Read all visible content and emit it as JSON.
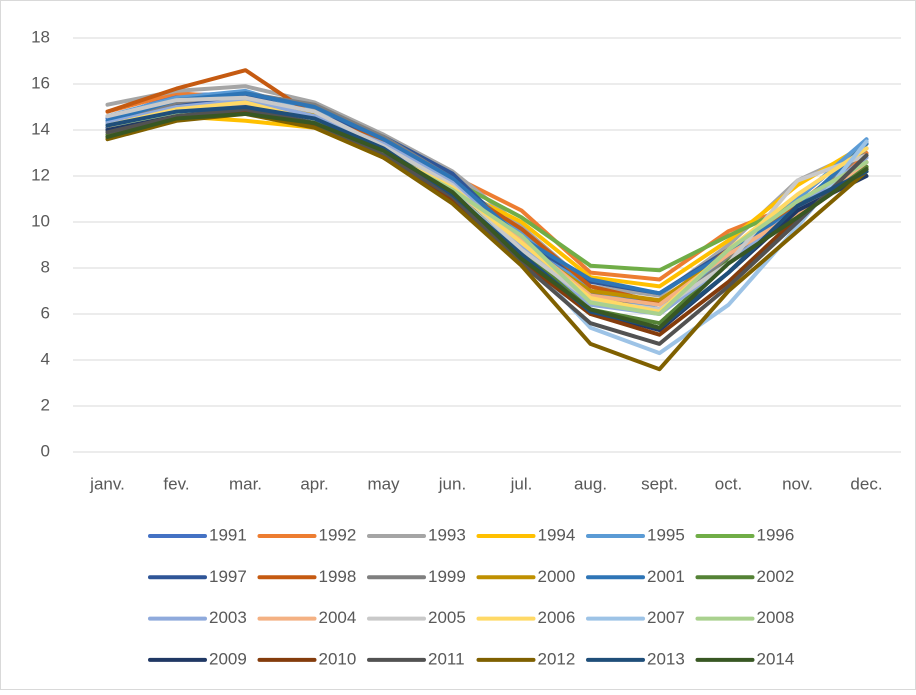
{
  "chart_data": {
    "type": "line",
    "categories": [
      "janv.",
      "fev.",
      "mar.",
      "apr.",
      "may",
      "jun.",
      "jul.",
      "aug.",
      "sept.",
      "oct.",
      "nov.",
      "dec."
    ],
    "ylim": [
      0,
      18
    ],
    "yticks": [
      0,
      2,
      4,
      6,
      8,
      10,
      12,
      14,
      16,
      18
    ],
    "grid": true,
    "legend": "bottom",
    "series": [
      {
        "name": "1991",
        "color": "#4472C4",
        "values": [
          14.5,
          15.5,
          15.6,
          15.0,
          13.6,
          11.8,
          9.2,
          7.0,
          6.5,
          8.6,
          11.0,
          13.5
        ]
      },
      {
        "name": "1992",
        "color": "#ED7D31",
        "values": [
          14.8,
          15.6,
          15.4,
          14.9,
          13.4,
          12.0,
          10.5,
          7.8,
          7.5,
          9.6,
          10.8,
          13.0
        ]
      },
      {
        "name": "1993",
        "color": "#A5A5A5",
        "values": [
          15.1,
          15.7,
          15.9,
          15.2,
          13.8,
          12.2,
          9.8,
          7.2,
          6.8,
          9.0,
          11.8,
          13.2
        ]
      },
      {
        "name": "1994",
        "color": "#FFC000",
        "values": [
          14.2,
          14.6,
          14.4,
          14.1,
          12.8,
          11.5,
          10.0,
          7.6,
          7.2,
          9.2,
          11.6,
          13.4
        ]
      },
      {
        "name": "1995",
        "color": "#5B9BD5",
        "values": [
          14.6,
          15.4,
          15.7,
          14.8,
          13.5,
          11.9,
          9.5,
          7.0,
          6.2,
          8.4,
          11.0,
          13.6
        ]
      },
      {
        "name": "1996",
        "color": "#70AD47",
        "values": [
          14.0,
          15.0,
          15.3,
          14.5,
          13.2,
          11.8,
          10.2,
          8.1,
          7.9,
          9.4,
          10.8,
          12.6
        ]
      },
      {
        "name": "1997",
        "color": "#2F5597",
        "values": [
          14.1,
          15.1,
          15.5,
          14.7,
          13.7,
          12.1,
          9.2,
          7.4,
          6.9,
          8.8,
          10.7,
          12.4
        ]
      },
      {
        "name": "1998",
        "color": "#C55A11",
        "values": [
          14.8,
          15.8,
          16.6,
          14.6,
          13.5,
          11.6,
          9.7,
          7.2,
          6.5,
          8.8,
          10.8,
          12.6
        ]
      },
      {
        "name": "1999",
        "color": "#7F7F7F",
        "values": [
          14.3,
          15.2,
          15.6,
          15.1,
          13.7,
          11.9,
          9.0,
          6.9,
          6.0,
          8.4,
          10.4,
          13.2
        ]
      },
      {
        "name": "2000",
        "color": "#BF9000",
        "values": [
          14.0,
          15.0,
          15.2,
          14.7,
          13.2,
          11.2,
          9.0,
          7.0,
          6.6,
          8.6,
          10.6,
          12.4
        ]
      },
      {
        "name": "2001",
        "color": "#2E75B6",
        "values": [
          14.4,
          15.3,
          15.6,
          15.0,
          13.6,
          11.9,
          9.3,
          7.5,
          6.9,
          8.7,
          10.6,
          13.4
        ]
      },
      {
        "name": "2002",
        "color": "#548235",
        "values": [
          13.8,
          14.8,
          15.0,
          14.6,
          13.2,
          11.6,
          8.8,
          6.2,
          5.6,
          8.3,
          10.3,
          12.4
        ]
      },
      {
        "name": "2003",
        "color": "#8FAADC",
        "values": [
          14.3,
          15.0,
          15.3,
          14.6,
          13.4,
          11.7,
          9.0,
          6.4,
          6.0,
          8.2,
          10.6,
          12.8
        ]
      },
      {
        "name": "2004",
        "color": "#F4B183",
        "values": [
          14.0,
          14.8,
          15.1,
          14.4,
          13.0,
          11.4,
          9.2,
          6.8,
          6.4,
          8.6,
          10.4,
          12.6
        ]
      },
      {
        "name": "2005",
        "color": "#C9C9C9",
        "values": [
          14.6,
          15.3,
          15.4,
          14.8,
          13.3,
          11.6,
          8.8,
          6.6,
          6.2,
          8.2,
          11.8,
          12.9
        ]
      },
      {
        "name": "2006",
        "color": "#FFD966",
        "values": [
          14.2,
          14.9,
          15.2,
          14.4,
          13.0,
          11.5,
          9.1,
          6.7,
          6.1,
          8.8,
          11.2,
          13.2
        ]
      },
      {
        "name": "2007",
        "color": "#9DC3E6",
        "values": [
          14.2,
          14.8,
          15.0,
          14.2,
          13.0,
          11.3,
          8.6,
          5.4,
          4.3,
          6.4,
          9.8,
          13.5
        ]
      },
      {
        "name": "2008",
        "color": "#A9D18E",
        "values": [
          14.0,
          14.7,
          15.0,
          14.4,
          13.0,
          11.4,
          9.4,
          6.5,
          6.0,
          8.8,
          10.9,
          12.6
        ]
      },
      {
        "name": "2009",
        "color": "#203864",
        "values": [
          14.0,
          14.6,
          14.9,
          14.3,
          12.9,
          11.2,
          8.4,
          6.1,
          5.3,
          7.8,
          10.5,
          12.0
        ]
      },
      {
        "name": "2010",
        "color": "#843C0C",
        "values": [
          13.7,
          14.5,
          14.8,
          14.2,
          12.8,
          11.0,
          8.3,
          6.0,
          5.1,
          7.4,
          10.2,
          12.3
        ]
      },
      {
        "name": "2011",
        "color": "#525252",
        "values": [
          13.9,
          14.6,
          14.9,
          14.3,
          12.9,
          11.1,
          8.2,
          5.6,
          4.7,
          7.2,
          10.0,
          12.9
        ]
      },
      {
        "name": "2012",
        "color": "#7F6000",
        "values": [
          13.6,
          14.4,
          14.7,
          14.1,
          12.8,
          10.8,
          8.1,
          4.7,
          3.6,
          7.0,
          9.6,
          12.2
        ]
      },
      {
        "name": "2013",
        "color": "#1F4E79",
        "values": [
          14.2,
          14.8,
          15.0,
          14.5,
          13.2,
          11.2,
          8.6,
          6.1,
          5.4,
          7.8,
          10.7,
          12.2
        ]
      },
      {
        "name": "2014",
        "color": "#385723",
        "values": [
          13.7,
          14.5,
          14.7,
          14.3,
          13.1,
          11.3,
          8.4,
          6.2,
          5.4,
          8.2,
          10.2,
          12.3
        ]
      }
    ]
  }
}
